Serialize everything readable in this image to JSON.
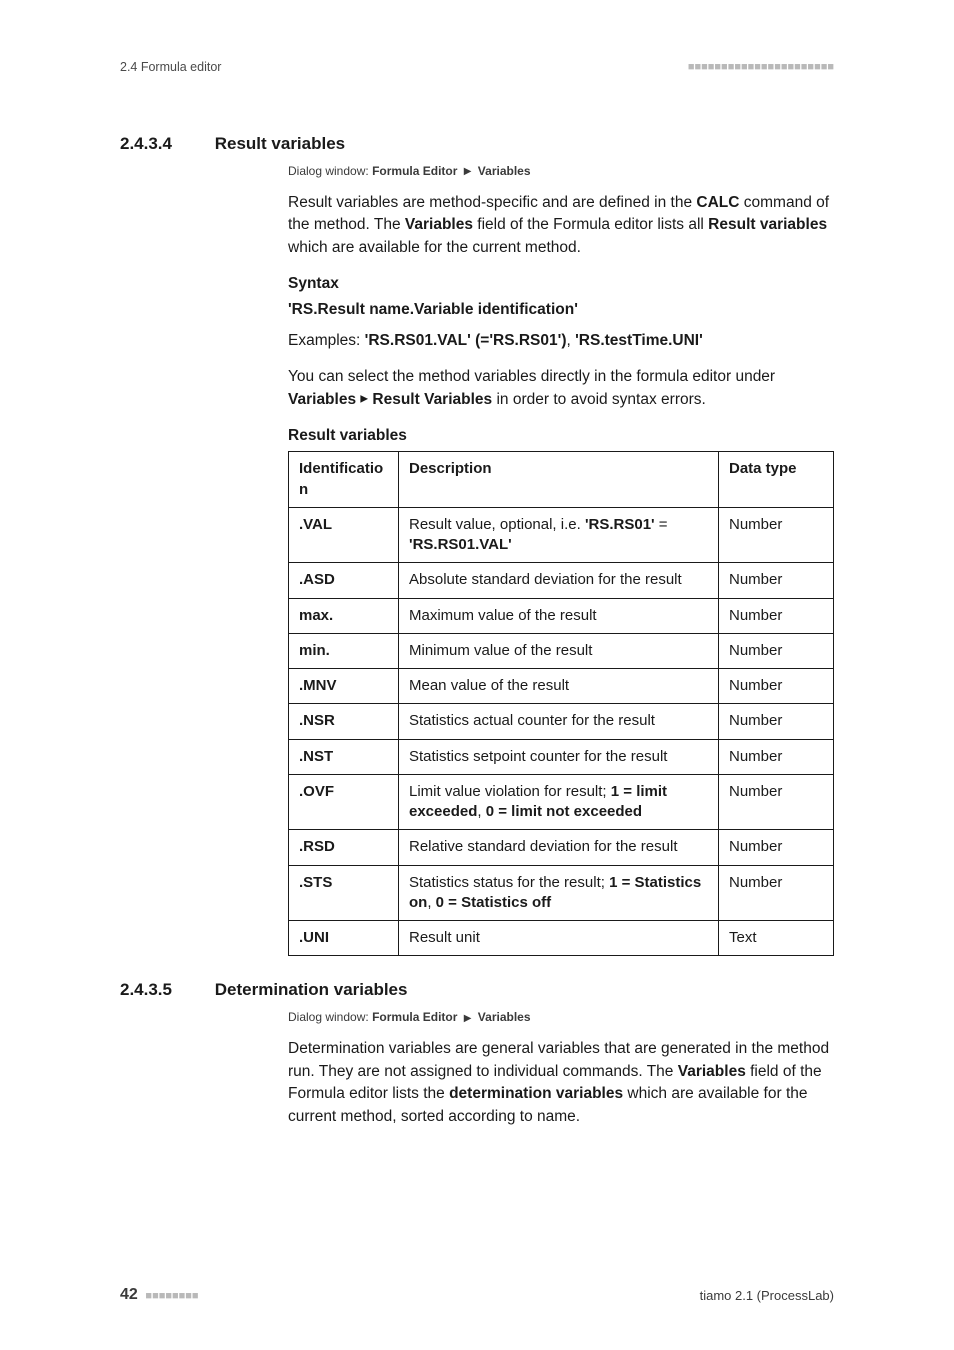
{
  "header": {
    "left": "2.4 Formula editor",
    "squares": "■■■■■■■■■■■■■■■■■■■■■■"
  },
  "sec_a": {
    "num": "2.4.3.4",
    "title": "Result variables",
    "dialog_prefix": "Dialog window:",
    "dialog_a": "Formula Editor",
    "dialog_b": "Variables",
    "p1_a": "Result variables are method-specific and are defined in the ",
    "p1_b": "CALC",
    "p1_c": " command of the method. The ",
    "p1_d": "Variables",
    "p1_e": " field of the Formula editor lists all ",
    "p1_f": "Result variables",
    "p1_g": " which are available for the current method.",
    "syntax_h": "Syntax",
    "syntax_line": "'RS.Result name.Variable identification'",
    "ex_a": "Examples: ",
    "ex_b": "'RS.RS01.VAL' (='RS.RS01')",
    "ex_c": ", ",
    "ex_d": "'RS.testTime.UNI'",
    "p2_a": "You can select the method variables directly in the formula editor under ",
    "p2_b": "Variables",
    "p2_c": "Result Variables",
    "p2_d": " in order to avoid syntax errors.",
    "table_h": "Result variables",
    "th_id": "Identification",
    "th_desc": "Description",
    "th_type": "Data type",
    "rows": [
      {
        "id": ".VAL",
        "d_a": "Result value, optional, i.e. ",
        "d_b": "'RS.RS01'",
        "d_c": " = ",
        "d_d": "'RS.RS01.VAL'",
        "t": "Number"
      },
      {
        "id": ".ASD",
        "d_a": "Absolute standard deviation for the result",
        "t": "Number"
      },
      {
        "id": "max.",
        "d_a": "Maximum value of the result",
        "t": "Number"
      },
      {
        "id": "min.",
        "d_a": "Minimum value of the result",
        "t": "Number"
      },
      {
        "id": ".MNV",
        "d_a": "Mean value of the result",
        "t": "Number"
      },
      {
        "id": ".NSR",
        "d_a": "Statistics actual counter for the result",
        "t": "Number"
      },
      {
        "id": ".NST",
        "d_a": "Statistics setpoint counter for the result",
        "t": "Number"
      },
      {
        "id": ".OVF",
        "d_a": "Limit value violation for result; ",
        "d_b": "1 = limit exceeded",
        "d_c": ", ",
        "d_d": "0 = limit not exceeded",
        "t": "Number"
      },
      {
        "id": ".RSD",
        "d_a": "Relative standard deviation for the result",
        "t": "Number"
      },
      {
        "id": ".STS",
        "d_a": "Statistics status for the result; ",
        "d_b": "1 = Statistics on",
        "d_c": ", ",
        "d_d": "0 = Statistics off",
        "t": "Number"
      },
      {
        "id": ".UNI",
        "d_a": "Result unit",
        "t": "Text"
      }
    ]
  },
  "sec_b": {
    "num": "2.4.3.5",
    "title": "Determination variables",
    "dialog_prefix": "Dialog window:",
    "dialog_a": "Formula Editor",
    "dialog_b": "Variables",
    "p1_a": "Determination variables are general variables that are generated in the method run. They are not assigned to individual commands. The ",
    "p1_b": "Variables",
    "p1_c": " field of the Formula editor lists the ",
    "p1_d": "determination variables",
    "p1_e": " which are available for the current method, sorted according to name."
  },
  "footer": {
    "page": "42",
    "psq": "■■■■■■■■",
    "right": "tiamo 2.1 (ProcessLab)"
  }
}
